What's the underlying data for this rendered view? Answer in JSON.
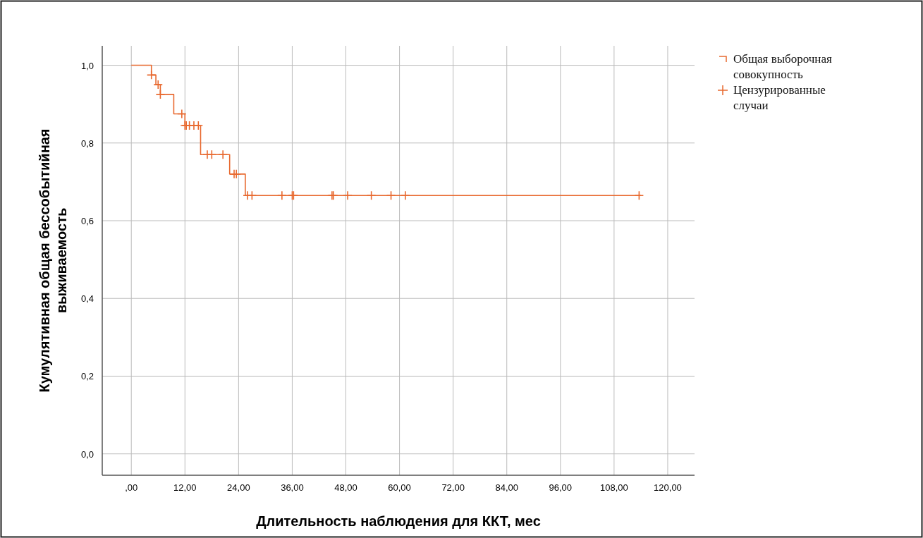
{
  "chart_data": {
    "type": "step",
    "xlabel": "Длительность наблюдения для ККТ, мес",
    "ylabel": "Кумулятивная общая бессобытийная выживаемость",
    "xlim": [
      -6.5,
      126
    ],
    "ylim": [
      -0.055,
      1.05
    ],
    "xticks": [
      {
        "value": 0,
        "label": ",00"
      },
      {
        "value": 12,
        "label": "12,00"
      },
      {
        "value": 24,
        "label": "24,00"
      },
      {
        "value": 36,
        "label": "36,00"
      },
      {
        "value": 48,
        "label": "48,00"
      },
      {
        "value": 60,
        "label": "60,00"
      },
      {
        "value": 72,
        "label": "72,00"
      },
      {
        "value": 84,
        "label": "84,00"
      },
      {
        "value": 96,
        "label": "96,00"
      },
      {
        "value": 108,
        "label": "108,00"
      },
      {
        "value": 120,
        "label": "120,00"
      }
    ],
    "yticks": [
      {
        "value": 0,
        "label": "0,0"
      },
      {
        "value": 0.2,
        "label": "0,2"
      },
      {
        "value": 0.4,
        "label": "0,4"
      },
      {
        "value": 0.6,
        "label": "0,6"
      },
      {
        "value": 0.8,
        "label": "0,8"
      },
      {
        "value": 1,
        "label": "1,0"
      }
    ],
    "grid": true,
    "legend": "right",
    "series": [
      {
        "name": "Общая выборочная совокупность",
        "color": "#e8692f",
        "x": [
          0,
          4.5,
          5.5,
          6.5,
          9.5,
          12,
          15.5,
          22,
          25.5,
          114
        ],
        "values": [
          1,
          0.975,
          0.95,
          0.925,
          0.875,
          0.845,
          0.77,
          0.72,
          0.665,
          0.665
        ]
      },
      {
        "name": "Цензурированные случаи",
        "type": "scatter",
        "marker": "cross",
        "color": "#e8692f",
        "x": [
          4.5,
          6,
          6.5,
          11.3,
          12,
          12.3,
          13,
          14,
          15,
          17,
          18,
          20.5,
          23,
          23.5,
          26,
          27,
          33.7,
          36,
          36.3,
          44.9,
          45.2,
          48.4,
          53.7,
          58.1,
          61.3,
          113.6
        ],
        "values": [
          0.975,
          0.95,
          0.925,
          0.875,
          0.845,
          0.845,
          0.845,
          0.845,
          0.845,
          0.77,
          0.77,
          0.77,
          0.72,
          0.72,
          0.665,
          0.665,
          0.665,
          0.665,
          0.665,
          0.665,
          0.665,
          0.665,
          0.665,
          0.665,
          0.665,
          0.665
        ]
      }
    ]
  }
}
